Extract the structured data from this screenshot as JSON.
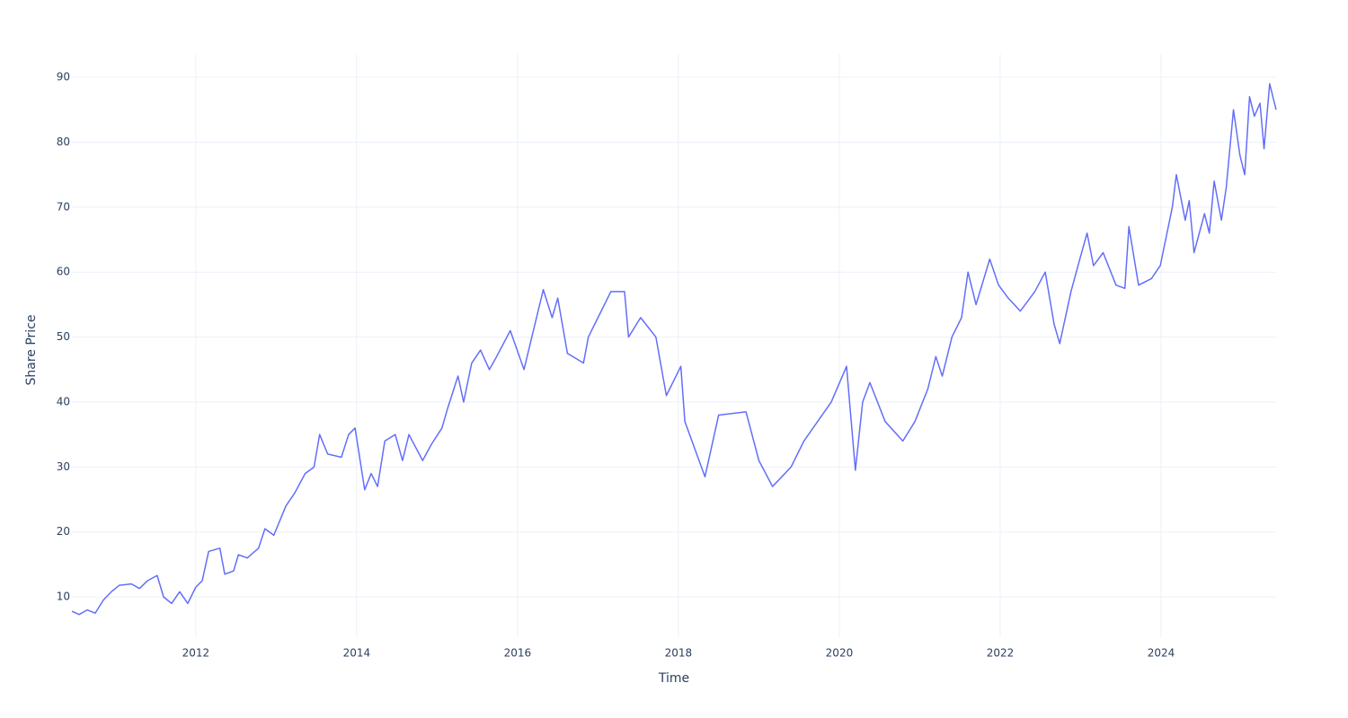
{
  "chart_data": {
    "type": "line",
    "x_label": "Time",
    "y_label": "Share Price",
    "series": [
      {
        "name": "Share Price",
        "color": "#636efa",
        "x": [
          2010.46,
          2010.55,
          2010.65,
          2010.75,
          2010.85,
          2010.95,
          2011.05,
          2011.2,
          2011.3,
          2011.4,
          2011.52,
          2011.6,
          2011.7,
          2011.8,
          2011.9,
          2012.0,
          2012.08,
          2012.16,
          2012.3,
          2012.36,
          2012.47,
          2012.53,
          2012.64,
          2012.78,
          2012.86,
          2012.97,
          2013.12,
          2013.23,
          2013.36,
          2013.47,
          2013.54,
          2013.64,
          2013.81,
          2013.9,
          2013.98,
          2014.1,
          2014.18,
          2014.26,
          2014.35,
          2014.48,
          2014.57,
          2014.65,
          2014.82,
          2014.93,
          2015.06,
          2015.13,
          2015.26,
          2015.33,
          2015.43,
          2015.54,
          2015.65,
          2015.74,
          2015.91,
          2016.08,
          2016.32,
          2016.43,
          2016.5,
          2016.62,
          2016.82,
          2016.88,
          2017.0,
          2017.16,
          2017.33,
          2017.38,
          2017.53,
          2017.72,
          2017.85,
          2018.03,
          2018.08,
          2018.33,
          2018.5,
          2018.84,
          2019.0,
          2019.17,
          2019.4,
          2019.56,
          2019.9,
          2020.09,
          2020.2,
          2020.29,
          2020.38,
          2020.57,
          2020.79,
          2020.94,
          2021.1,
          2021.2,
          2021.28,
          2021.4,
          2021.52,
          2021.6,
          2021.7,
          2021.87,
          2021.98,
          2022.1,
          2022.25,
          2022.43,
          2022.56,
          2022.67,
          2022.74,
          2022.88,
          2022.99,
          2023.08,
          2023.16,
          2023.28,
          2023.44,
          2023.55,
          2023.6,
          2023.72,
          2023.88,
          2023.99,
          2024.14,
          2024.19,
          2024.3,
          2024.35,
          2024.41,
          2024.54,
          2024.6,
          2024.66,
          2024.75,
          2024.81,
          2024.9,
          2024.98,
          2025.04,
          2025.1,
          2025.16,
          2025.23,
          2025.28,
          2025.35,
          2025.43
        ],
        "values": [
          7.8,
          7.3,
          8.0,
          7.5,
          9.5,
          10.8,
          11.8,
          12.0,
          11.3,
          12.5,
          13.3,
          10.0,
          9.0,
          10.8,
          9.0,
          11.5,
          12.5,
          17.0,
          17.5,
          13.5,
          14.0,
          16.5,
          16.0,
          17.5,
          20.5,
          19.5,
          24.0,
          26.0,
          29.0,
          30.0,
          35.0,
          32.0,
          31.5,
          35.0,
          36.0,
          26.5,
          29.0,
          27.0,
          34.0,
          35.0,
          31.0,
          35.0,
          31.0,
          33.5,
          36.0,
          39.0,
          44.0,
          40.0,
          46.0,
          48.0,
          45.0,
          47.0,
          51.0,
          45.0,
          57.3,
          53.0,
          56.0,
          47.5,
          46.0,
          50.0,
          53.0,
          57.0,
          57.0,
          50.0,
          53.0,
          50.0,
          41.0,
          45.5,
          37.0,
          28.5,
          38.0,
          38.5,
          31.0,
          27.0,
          30.0,
          34.0,
          40.0,
          45.5,
          29.5,
          40.0,
          43.0,
          37.0,
          34.0,
          37.0,
          42.0,
          47.0,
          44.0,
          50.0,
          53.0,
          60.0,
          55.0,
          62.0,
          58.0,
          56.0,
          54.0,
          57.0,
          60.0,
          52.0,
          49.0,
          57.0,
          62.0,
          66.0,
          61.0,
          63.0,
          58.0,
          57.5,
          67.0,
          58.0,
          59.0,
          61.0,
          70.0,
          75.0,
          68.0,
          71.0,
          63.0,
          69.0,
          66.0,
          74.0,
          68.0,
          73.0,
          85.0,
          78.0,
          75.0,
          87.0,
          84.0,
          86.0,
          79.0,
          89.0,
          85.0
        ]
      }
    ],
    "xlim": [
      2010.46,
      2025.43
    ],
    "xticks": [
      2012,
      2014,
      2016,
      2018,
      2020,
      2022,
      2024
    ],
    "ylim": [
      3.8,
      93.6
    ],
    "yticks": [
      10,
      20,
      30,
      40,
      50,
      60,
      70,
      80,
      90
    ],
    "grid": true
  }
}
